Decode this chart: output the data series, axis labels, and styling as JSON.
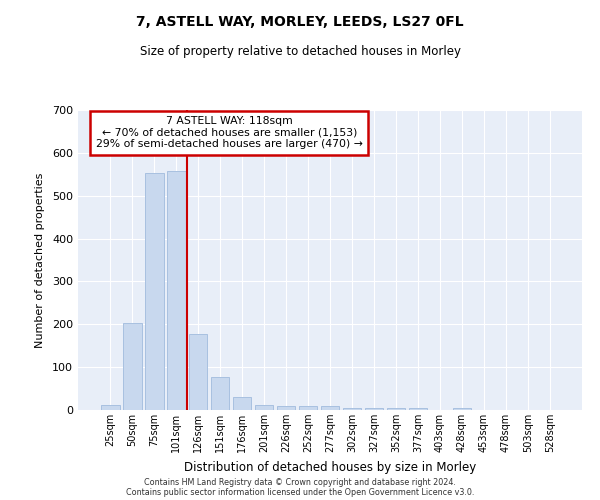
{
  "title": "7, ASTELL WAY, MORLEY, LEEDS, LS27 0FL",
  "subtitle": "Size of property relative to detached houses in Morley",
  "xlabel": "Distribution of detached houses by size in Morley",
  "ylabel": "Number of detached properties",
  "bar_labels": [
    "25sqm",
    "50sqm",
    "75sqm",
    "101sqm",
    "126sqm",
    "151sqm",
    "176sqm",
    "201sqm",
    "226sqm",
    "252sqm",
    "277sqm",
    "302sqm",
    "327sqm",
    "352sqm",
    "377sqm",
    "403sqm",
    "428sqm",
    "453sqm",
    "478sqm",
    "503sqm",
    "528sqm"
  ],
  "bar_values": [
    12,
    204,
    553,
    558,
    178,
    78,
    30,
    12,
    10,
    10,
    10,
    5,
    5,
    5,
    5,
    0,
    5,
    0,
    0,
    0,
    0
  ],
  "bar_color": "#c8d8ee",
  "bar_edge_color": "#a8c0e0",
  "vline_color": "#cc0000",
  "annotation_title": "7 ASTELL WAY: 118sqm",
  "annotation_line1": "← 70% of detached houses are smaller (1,153)",
  "annotation_line2": "29% of semi-detached houses are larger (470) →",
  "annotation_box_color": "#cc0000",
  "ylim": [
    0,
    700
  ],
  "yticks": [
    0,
    100,
    200,
    300,
    400,
    500,
    600,
    700
  ],
  "background_color": "#e8eef8",
  "footer_line1": "Contains HM Land Registry data © Crown copyright and database right 2024.",
  "footer_line2": "Contains public sector information licensed under the Open Government Licence v3.0."
}
